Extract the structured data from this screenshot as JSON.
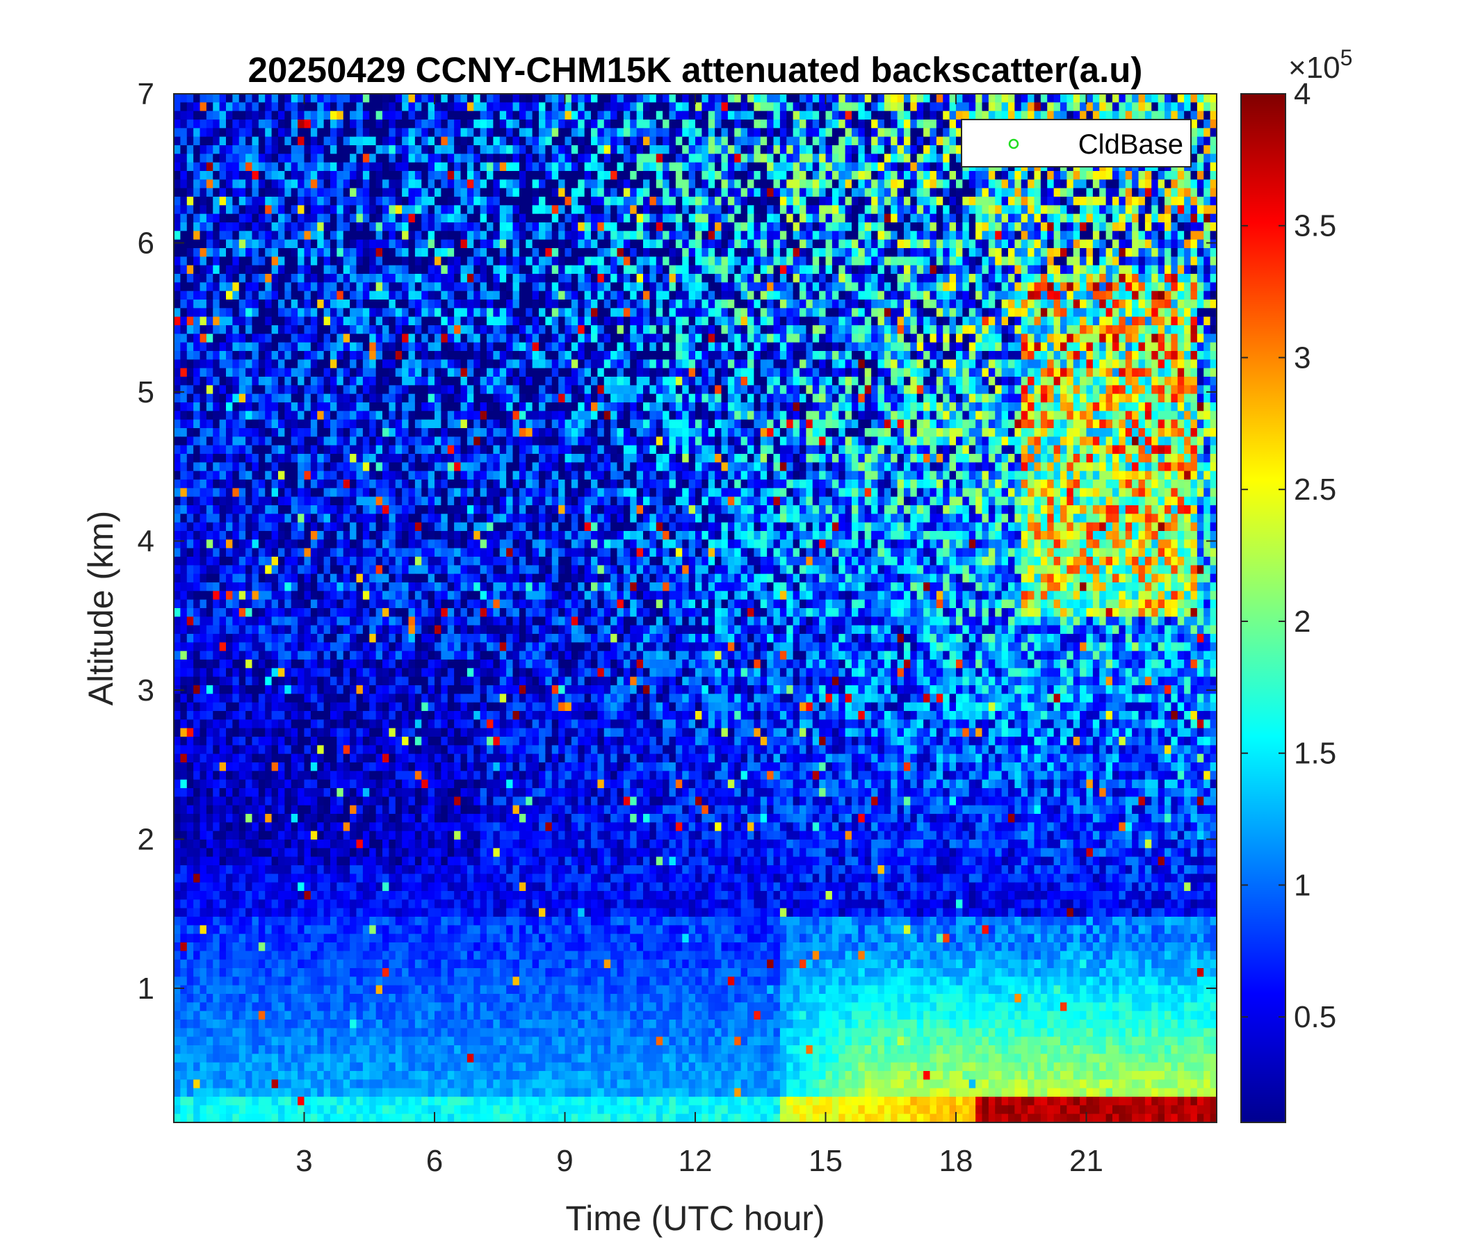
{
  "chart_data": {
    "type": "heatmap",
    "title": "20250429 CCNY-CHM15K attenuated backscatter(a.u)",
    "xlabel": "Time (UTC hour)",
    "ylabel": "Altitude (km)",
    "xlim": [
      0,
      24
    ],
    "ylim": [
      0.1,
      7
    ],
    "x_ticks": [
      "3",
      "6",
      "9",
      "12",
      "15",
      "18",
      "21"
    ],
    "y_ticks": [
      "1",
      "2",
      "3",
      "4",
      "5",
      "6",
      "7"
    ],
    "colorbar": {
      "colormap": "jet",
      "range": [
        0.1,
        4
      ],
      "ticks": [
        "0.5",
        "1",
        "1.5",
        "2",
        "2.5",
        "3",
        "3.5",
        "4"
      ],
      "exponent_label": "×10",
      "exponent_power": "5"
    },
    "legend": {
      "position": "top-right",
      "entries": [
        {
          "label": "CldBase",
          "marker": "circle",
          "color": "#22dd22"
        }
      ]
    },
    "grid": false
  }
}
